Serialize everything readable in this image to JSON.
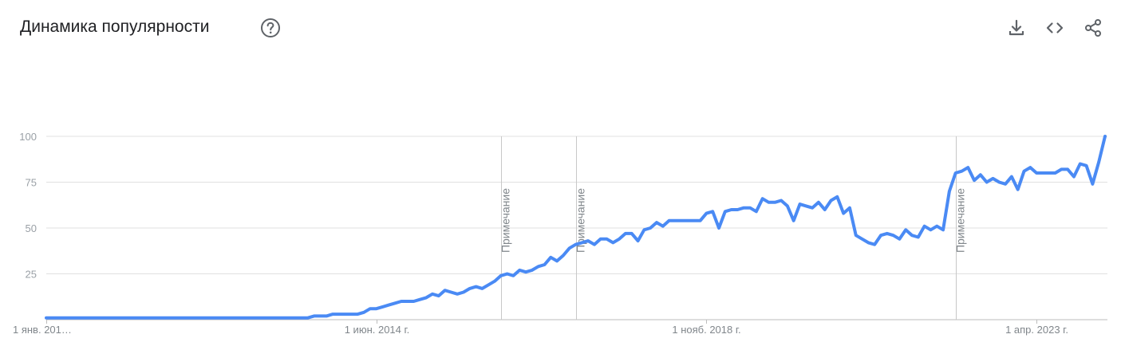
{
  "header": {
    "title": "Динамика популярности",
    "help_icon": "help-circle-icon",
    "tools": [
      {
        "name": "download-icon"
      },
      {
        "name": "embed-code-icon"
      },
      {
        "name": "share-icon"
      }
    ]
  },
  "colors": {
    "line": "#4a8af4",
    "grid": "#e0e0e0",
    "note_line": "#c8c8c8",
    "title": "#202124",
    "icon": "#5f6368"
  },
  "chart_data": {
    "type": "line",
    "title": "",
    "xlabel": "",
    "ylabel": "",
    "ylim": [
      0,
      100
    ],
    "yticks": [
      25,
      50,
      75,
      100
    ],
    "grid": true,
    "x_start": "2010-01",
    "x_step": "month",
    "x_ticks": [
      {
        "index": 0,
        "label": "1 янв. 201…"
      },
      {
        "index": 53,
        "label": "1 июн. 2014 г."
      },
      {
        "index": 106,
        "label": "1 нояб. 2018 г."
      },
      {
        "index": 159,
        "label": "1 апр. 2023 г."
      }
    ],
    "annotations": [
      {
        "index": 73,
        "label": "Примечание"
      },
      {
        "index": 85,
        "label": "Примечание"
      },
      {
        "index": 146,
        "label": "Примечание"
      }
    ],
    "series": [
      {
        "values": [
          1,
          1,
          1,
          1,
          1,
          1,
          1,
          1,
          1,
          1,
          1,
          1,
          1,
          1,
          1,
          1,
          1,
          1,
          1,
          1,
          1,
          1,
          1,
          1,
          1,
          1,
          1,
          1,
          1,
          1,
          1,
          1,
          1,
          1,
          1,
          1,
          1,
          1,
          1,
          1,
          1,
          1,
          1,
          2,
          2,
          2,
          3,
          3,
          3,
          3,
          3,
          4,
          6,
          6,
          7,
          8,
          9,
          10,
          10,
          10,
          11,
          12,
          14,
          13,
          16,
          15,
          14,
          15,
          17,
          18,
          17,
          19,
          21,
          24,
          25,
          24,
          27,
          26,
          27,
          29,
          30,
          34,
          32,
          35,
          39,
          41,
          42,
          43,
          41,
          44,
          44,
          42,
          44,
          47,
          47,
          43,
          49,
          50,
          53,
          51,
          54,
          54,
          54,
          54,
          54,
          54,
          58,
          59,
          50,
          59,
          60,
          60,
          61,
          61,
          59,
          66,
          64,
          64,
          65,
          62,
          54,
          63,
          62,
          61,
          64,
          60,
          65,
          67,
          58,
          61,
          46,
          44,
          42,
          41,
          46,
          47,
          46,
          44,
          49,
          46,
          45,
          51,
          49,
          51,
          49,
          70,
          80,
          81,
          83,
          76,
          79,
          75,
          77,
          75,
          74,
          78,
          71,
          81,
          83,
          80,
          80,
          80,
          80,
          82,
          82,
          78,
          85,
          84,
          74,
          86,
          100
        ]
      }
    ]
  }
}
